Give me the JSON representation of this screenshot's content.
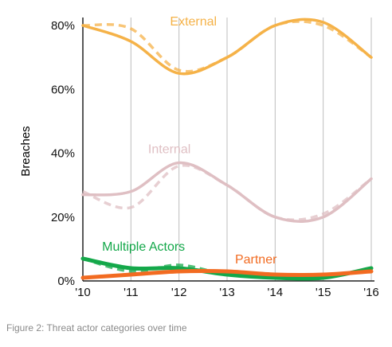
{
  "chart_data": {
    "type": "line",
    "x": [
      "'10",
      "'11",
      "'12",
      "'13",
      "'14",
      "'15",
      "'16"
    ],
    "ylabel": "Breaches",
    "ylim": [
      0,
      80
    ],
    "yticks": [
      "0%",
      "20%",
      "40%",
      "60%",
      "80%"
    ],
    "grid": "vertical",
    "series": [
      {
        "name": "External",
        "color": "#F5B248",
        "values": [
          80,
          75,
          65,
          70,
          80,
          81,
          70
        ],
        "dashed_values": [
          80,
          79,
          66,
          70,
          80,
          80,
          70
        ]
      },
      {
        "name": "Internal",
        "color": "#DFBFC3",
        "values": [
          27,
          28,
          37,
          30,
          20,
          20,
          32
        ],
        "dashed_values": [
          28,
          23,
          36,
          30,
          20,
          21,
          32
        ]
      },
      {
        "name": "Multiple Actors",
        "color": "#14A84A",
        "values": [
          7,
          4,
          4,
          2,
          1,
          1,
          4
        ],
        "dashed_values": [
          7,
          3,
          5,
          2,
          1,
          1,
          4
        ]
      },
      {
        "name": "Partner",
        "color": "#F26B21",
        "values": [
          1,
          2,
          3,
          3,
          2,
          2,
          3
        ],
        "dashed_values": [
          1,
          2,
          3,
          3,
          2,
          2,
          3
        ]
      }
    ]
  },
  "caption": "Figure 2: Threat actor categories over time"
}
